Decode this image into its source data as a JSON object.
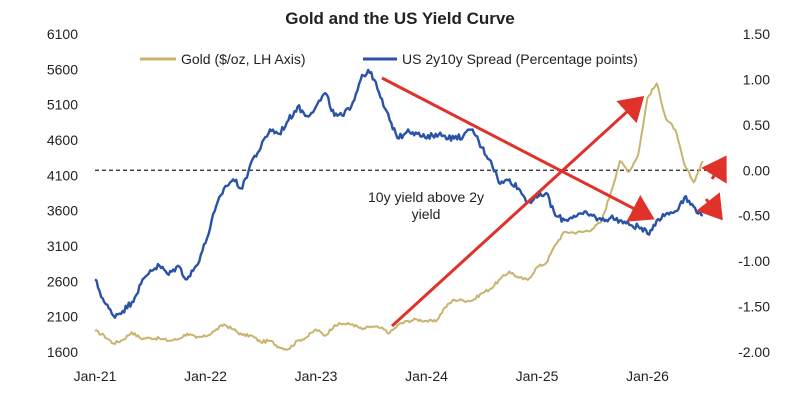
{
  "chart_data": {
    "type": "line",
    "title": "Gold and the US Yield Curve",
    "x_tick_labels": [
      "Jan-21",
      "Jan-22",
      "Jan-23",
      "Jan-24",
      "Jan-25",
      "Jan-26"
    ],
    "y_left": {
      "min": 1600,
      "max": 6100,
      "ticks": [
        1600,
        2100,
        2600,
        3100,
        3600,
        4100,
        4600,
        5100,
        5600,
        6100
      ]
    },
    "y_right": {
      "min": -2.0,
      "max": 1.5,
      "ticks": [
        "-2.00",
        "-1.50",
        "-1.00",
        "-0.50",
        "0.00",
        "0.50",
        "1.00",
        "1.50"
      ]
    },
    "legend_position": "top",
    "series": [
      {
        "name": "Gold ($/oz, LH Axis)",
        "axis": "left",
        "color": "#c8b46e",
        "points": [
          [
            "2021-01",
            1900
          ],
          [
            "2021-02",
            1830
          ],
          [
            "2021-03",
            1720
          ],
          [
            "2021-04",
            1770
          ],
          [
            "2021-05",
            1880
          ],
          [
            "2021-06",
            1790
          ],
          [
            "2021-07",
            1800
          ],
          [
            "2021-08",
            1790
          ],
          [
            "2021-09",
            1760
          ],
          [
            "2021-10",
            1780
          ],
          [
            "2021-11",
            1860
          ],
          [
            "2021-12",
            1800
          ],
          [
            "2022-01",
            1820
          ],
          [
            "2022-02",
            1900
          ],
          [
            "2022-03",
            1990
          ],
          [
            "2022-04",
            1920
          ],
          [
            "2022-05",
            1840
          ],
          [
            "2022-06",
            1830
          ],
          [
            "2022-07",
            1740
          ],
          [
            "2022-08",
            1760
          ],
          [
            "2022-09",
            1670
          ],
          [
            "2022-10",
            1640
          ],
          [
            "2022-11",
            1760
          ],
          [
            "2022-12",
            1810
          ],
          [
            "2023-01",
            1920
          ],
          [
            "2023-02",
            1830
          ],
          [
            "2023-03",
            1980
          ],
          [
            "2023-04",
            2000
          ],
          [
            "2023-05",
            1990
          ],
          [
            "2023-06",
            1920
          ],
          [
            "2023-07",
            1960
          ],
          [
            "2023-08",
            1940
          ],
          [
            "2023-09",
            1870
          ],
          [
            "2023-10",
            1990
          ],
          [
            "2023-11",
            2040
          ],
          [
            "2023-12",
            2060
          ],
          [
            "2024-01",
            2040
          ],
          [
            "2024-02",
            2030
          ],
          [
            "2024-03",
            2230
          ],
          [
            "2024-04",
            2340
          ],
          [
            "2024-05",
            2330
          ],
          [
            "2024-06",
            2330
          ],
          [
            "2024-07",
            2430
          ],
          [
            "2024-08",
            2500
          ],
          [
            "2024-09",
            2630
          ],
          [
            "2024-10",
            2740
          ],
          [
            "2024-11",
            2650
          ],
          [
            "2024-12",
            2620
          ],
          [
            "2025-01",
            2800
          ],
          [
            "2025-02",
            2860
          ],
          [
            "2025-03",
            3120
          ],
          [
            "2025-04",
            3300
          ],
          [
            "2025-05",
            3290
          ],
          [
            "2025-06",
            3300
          ],
          [
            "2025-07",
            3340
          ],
          [
            "2025-08",
            3450
          ],
          [
            "2025-09",
            3850
          ],
          [
            "2025-10",
            4300
          ],
          [
            "2025-11",
            4150
          ],
          [
            "2025-12",
            4400
          ],
          [
            "2026-01",
            5200
          ],
          [
            "2026-02",
            5400
          ],
          [
            "2026-03",
            4900
          ],
          [
            "2026-04",
            4750
          ],
          [
            "2026-05",
            4250
          ],
          [
            "2026-06",
            4000
          ],
          [
            "2026-07",
            4300
          ]
        ]
      },
      {
        "name": "US 2y10y Spread (Percentage points)",
        "axis": "right",
        "color": "#2a52a6",
        "points": [
          [
            "2021-01",
            -1.2
          ],
          [
            "2021-02",
            -1.45
          ],
          [
            "2021-03",
            -1.6
          ],
          [
            "2021-04",
            -1.55
          ],
          [
            "2021-05",
            -1.45
          ],
          [
            "2021-06",
            -1.25
          ],
          [
            "2021-07",
            -1.1
          ],
          [
            "2021-08",
            -1.05
          ],
          [
            "2021-09",
            -1.15
          ],
          [
            "2021-10",
            -1.05
          ],
          [
            "2021-11",
            -1.2
          ],
          [
            "2021-12",
            -1.05
          ],
          [
            "2022-01",
            -0.8
          ],
          [
            "2022-02",
            -0.45
          ],
          [
            "2022-03",
            -0.2
          ],
          [
            "2022-04",
            -0.1
          ],
          [
            "2022-05",
            -0.2
          ],
          [
            "2022-06",
            0.1
          ],
          [
            "2022-07",
            0.25
          ],
          [
            "2022-08",
            0.45
          ],
          [
            "2022-09",
            0.4
          ],
          [
            "2022-10",
            0.55
          ],
          [
            "2022-11",
            0.7
          ],
          [
            "2022-12",
            0.6
          ],
          [
            "2023-01",
            0.7
          ],
          [
            "2023-02",
            0.85
          ],
          [
            "2023-03",
            0.6
          ],
          [
            "2023-04",
            0.6
          ],
          [
            "2023-05",
            0.75
          ],
          [
            "2023-06",
            1.05
          ],
          [
            "2023-07",
            1.08
          ],
          [
            "2023-08",
            0.8
          ],
          [
            "2023-09",
            0.55
          ],
          [
            "2023-10",
            0.35
          ],
          [
            "2023-11",
            0.45
          ],
          [
            "2023-12",
            0.4
          ],
          [
            "2024-01",
            0.35
          ],
          [
            "2024-02",
            0.4
          ],
          [
            "2024-03",
            0.38
          ],
          [
            "2024-04",
            0.35
          ],
          [
            "2024-05",
            0.38
          ],
          [
            "2024-06",
            0.45
          ],
          [
            "2024-07",
            0.25
          ],
          [
            "2024-08",
            0.1
          ],
          [
            "2024-09",
            -0.15
          ],
          [
            "2024-10",
            -0.1
          ],
          [
            "2024-11",
            -0.2
          ],
          [
            "2024-12",
            -0.35
          ],
          [
            "2025-01",
            -0.3
          ],
          [
            "2025-02",
            -0.25
          ],
          [
            "2025-03",
            -0.5
          ],
          [
            "2025-04",
            -0.55
          ],
          [
            "2025-05",
            -0.5
          ],
          [
            "2025-06",
            -0.48
          ],
          [
            "2025-07",
            -0.5
          ],
          [
            "2025-08",
            -0.55
          ],
          [
            "2025-09",
            -0.52
          ],
          [
            "2025-10",
            -0.55
          ],
          [
            "2025-11",
            -0.6
          ],
          [
            "2025-12",
            -0.62
          ],
          [
            "2026-01",
            -0.7
          ],
          [
            "2026-02",
            -0.55
          ],
          [
            "2026-03",
            -0.48
          ],
          [
            "2026-04",
            -0.45
          ],
          [
            "2026-05",
            -0.3
          ],
          [
            "2026-06",
            -0.4
          ],
          [
            "2026-07",
            -0.5
          ]
        ]
      }
    ],
    "reference_line": {
      "axis": "right",
      "value": 0.0,
      "style": "dashed"
    },
    "annotations": [
      "10y yield above 2y",
      "yield"
    ],
    "arrow_color": "#e0312b"
  }
}
